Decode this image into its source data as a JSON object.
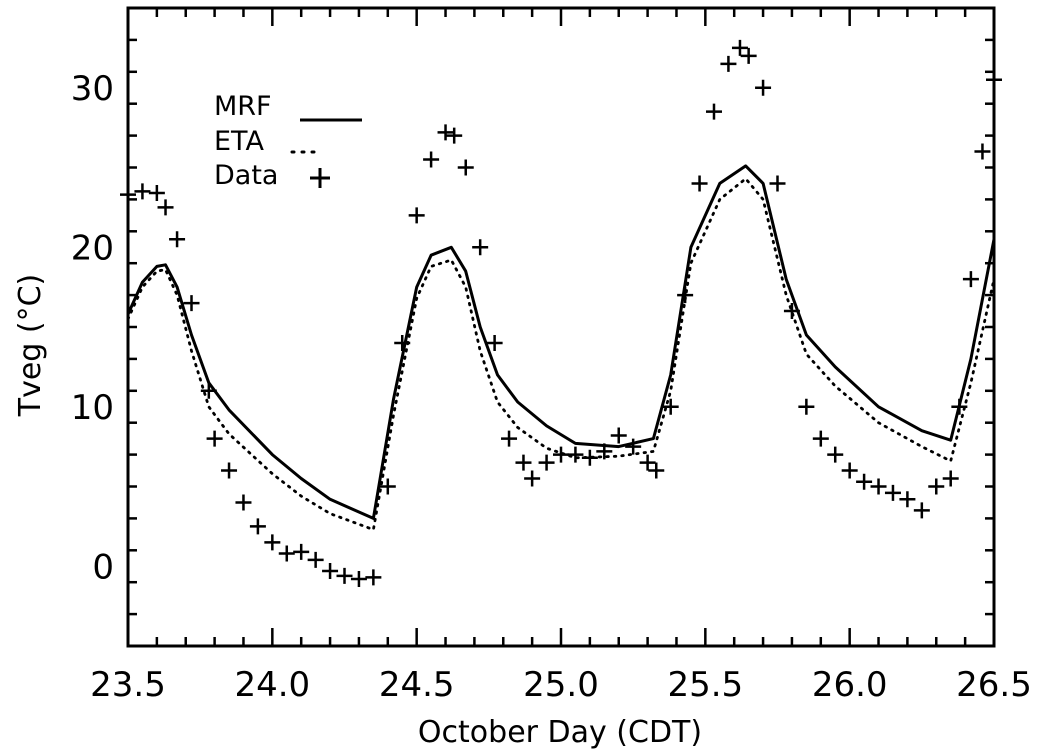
{
  "chart_data": {
    "type": "line",
    "title": "",
    "xlabel": "October Day (CDT)",
    "ylabel": "Tveg (°C)",
    "xlim": [
      23.5,
      26.5
    ],
    "ylim": [
      -5,
      35
    ],
    "x_ticks": [
      23.5,
      24.0,
      24.5,
      25.0,
      25.5,
      26.0,
      26.5
    ],
    "x_tick_labels": [
      "23.5",
      "24.0",
      "24.5",
      "25.0",
      "25.5",
      "26.0",
      "26.5"
    ],
    "y_ticks": [
      0,
      10,
      20,
      30
    ],
    "y_tick_labels": [
      "0",
      "10",
      "20",
      "30"
    ],
    "grid": false,
    "legend_position": "top-left",
    "series": [
      {
        "name": "MRF",
        "style": "solid",
        "color": "#000000",
        "x": [
          23.5,
          23.55,
          23.6,
          23.63,
          23.67,
          23.72,
          23.78,
          23.85,
          24.0,
          24.1,
          24.2,
          24.35,
          24.42,
          24.5,
          24.55,
          24.62,
          24.67,
          24.72,
          24.78,
          24.85,
          24.95,
          25.05,
          25.2,
          25.32,
          25.38,
          25.45,
          25.55,
          25.64,
          25.7,
          25.78,
          25.85,
          25.95,
          26.1,
          26.25,
          26.35,
          26.42,
          26.5
        ],
        "y": [
          15.8,
          17.8,
          18.8,
          18.9,
          17.5,
          14.5,
          11.5,
          9.8,
          7.0,
          5.5,
          4.2,
          3.0,
          10.5,
          17.5,
          19.5,
          20.0,
          18.5,
          15.0,
          12.0,
          10.3,
          8.8,
          7.7,
          7.5,
          8.0,
          12.0,
          20.0,
          24.0,
          25.1,
          24.0,
          18.0,
          14.5,
          12.5,
          10.0,
          8.5,
          7.9,
          13.0,
          20.5
        ]
      },
      {
        "name": "ETA",
        "style": "dotted",
        "color": "#000000",
        "x": [
          23.5,
          23.55,
          23.6,
          23.63,
          23.67,
          23.72,
          23.78,
          23.85,
          24.0,
          24.1,
          24.2,
          24.35,
          24.42,
          24.5,
          24.55,
          24.62,
          24.67,
          24.72,
          24.78,
          24.85,
          24.95,
          25.05,
          25.2,
          25.32,
          25.38,
          25.45,
          25.55,
          25.64,
          25.7,
          25.78,
          25.85,
          25.95,
          26.1,
          26.25,
          26.35,
          26.42,
          26.5
        ],
        "y": [
          15.5,
          17.5,
          18.5,
          18.6,
          17.0,
          13.5,
          10.0,
          8.3,
          5.8,
          4.4,
          3.3,
          2.3,
          9.5,
          16.8,
          18.8,
          19.2,
          17.5,
          13.5,
          10.3,
          8.7,
          7.4,
          6.8,
          6.9,
          7.2,
          11.0,
          19.0,
          23.0,
          24.3,
          23.0,
          17.0,
          13.3,
          11.3,
          9.0,
          7.5,
          6.6,
          11.5,
          18.0
        ]
      },
      {
        "name": "Data",
        "style": "plus-markers",
        "color": "#000000",
        "x": [
          23.5,
          23.55,
          23.6,
          23.63,
          23.67,
          23.72,
          23.78,
          23.8,
          23.85,
          23.9,
          23.95,
          24.0,
          24.05,
          24.1,
          24.15,
          24.2,
          24.25,
          24.3,
          24.35,
          24.4,
          24.45,
          24.5,
          24.55,
          24.6,
          24.63,
          24.67,
          24.72,
          24.77,
          24.82,
          24.87,
          24.9,
          24.95,
          25.0,
          25.05,
          25.1,
          25.15,
          25.2,
          25.25,
          25.3,
          25.33,
          25.38,
          25.43,
          25.48,
          25.53,
          25.58,
          25.62,
          25.65,
          25.7,
          25.75,
          25.8,
          25.85,
          25.9,
          25.95,
          26.0,
          26.05,
          26.1,
          26.15,
          26.2,
          26.25,
          26.3,
          26.35,
          26.38,
          26.42,
          26.46,
          26.5
        ],
        "y": [
          23.3,
          23.5,
          23.4,
          22.5,
          20.5,
          16.5,
          11.0,
          8.0,
          6.0,
          4.0,
          2.5,
          1.5,
          0.8,
          0.9,
          0.4,
          -0.3,
          -0.6,
          -0.8,
          -0.7,
          5.0,
          14.0,
          22.0,
          25.5,
          27.2,
          27.0,
          25.0,
          20.0,
          14.0,
          8.0,
          6.5,
          5.5,
          6.5,
          7.0,
          7.0,
          6.8,
          7.2,
          8.2,
          7.5,
          6.5,
          6.0,
          10.0,
          17.0,
          24.0,
          28.5,
          31.5,
          32.5,
          32.0,
          30.0,
          24.0,
          16.0,
          10.0,
          8.0,
          7.0,
          6.0,
          5.3,
          5.0,
          4.6,
          4.2,
          3.5,
          5.0,
          5.5,
          10.0,
          18.0,
          26.0,
          30.5
        ]
      }
    ]
  }
}
